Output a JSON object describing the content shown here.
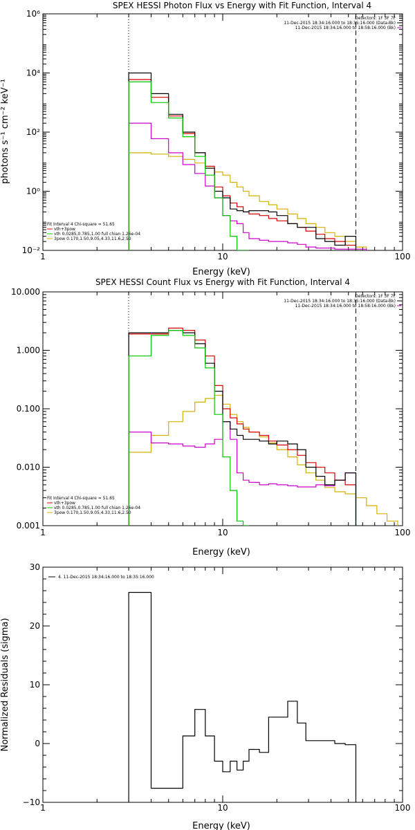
{
  "chart_data": [
    {
      "type": "line",
      "title": "SPEX HESSI Photon Flux vs Energy with Fit Function, Interval 4",
      "xlabel": "Energy (keV)",
      "ylabel": "photons s⁻¹ cm⁻² keV⁻¹",
      "xscale": "log",
      "yscale": "log",
      "xlim": [
        1,
        100
      ],
      "ylim": [
        0.01,
        1000000
      ],
      "x_ticks": [
        1,
        10,
        100
      ],
      "x_tick_labels": [
        "1",
        "10",
        "100"
      ],
      "y_ticks": [
        0.01,
        1,
        100,
        10000,
        1000000
      ],
      "y_tick_labels": [
        "10⁻²",
        "10⁰",
        "10²",
        "10⁴",
        "10⁶"
      ],
      "vlines": [
        {
          "x": 3.0,
          "style": "dotted"
        },
        {
          "x": 55,
          "style": "dashed"
        }
      ],
      "edges": [
        3.0,
        4.0,
        5.0,
        6.0,
        7.0,
        8.0,
        9.0,
        10.0,
        11.0,
        12.0,
        13.0,
        14.0,
        16.0,
        18.0,
        20.0,
        23.0,
        26.0,
        29.0,
        33.0,
        37.0,
        42.0,
        48.0,
        55.0,
        63.0
      ],
      "series": [
        {
          "name": "11-Dec-2015 18:34:16.000 to 18:35:16.000 (Data-Bk)",
          "color": "#000000",
          "values": [
            10000,
            2000,
            400,
            100,
            20,
            6,
            1,
            0.6,
            0.25,
            0.22,
            0.2,
            0.22,
            0.22,
            0.2,
            0.15,
            0.08,
            0.06,
            0.06,
            0.025,
            0.02,
            0.015,
            0.03,
            null
          ]
        },
        {
          "name": "vth+3pow",
          "color": "#d40000",
          "values": [
            6000,
            1500,
            350,
            90,
            20,
            7,
            1.4,
            0.7,
            0.4,
            0.3,
            0.2,
            0.17,
            0.15,
            0.12,
            0.1,
            0.08,
            0.06,
            0.045,
            0.035,
            0.025,
            0.02,
            0.015,
            null
          ]
        },
        {
          "name": "11-Dec-2015 18:34:16.000 to 18:58:16.000 (Bk)",
          "color": "#cc00cc",
          "values": [
            200,
            60,
            20,
            8,
            4,
            1.5,
            0.6,
            0.15,
            0.1,
            0.08,
            0.04,
            0.025,
            0.022,
            0.02,
            0.02,
            0.018,
            0.016,
            0.013,
            0.012,
            0.012,
            0.011,
            0.011,
            0.011
          ]
        },
        {
          "name": "vth 0.0285,0.785,1.00  full chian 1.26e-04",
          "color": "#00c800",
          "values": [
            5000,
            1000,
            300,
            70,
            15,
            3.5,
            0.6,
            0.15,
            0.03,
            0.01,
            0.002,
            null,
            null,
            null,
            null,
            null,
            null,
            null,
            null,
            null,
            null,
            null,
            null
          ]
        },
        {
          "name": "3pow 0.170,1.50,9.05,4.33,11.6,2.50",
          "color": "#d4b000",
          "values": [
            20,
            18,
            15,
            12,
            9,
            6,
            4.5,
            3.5,
            2,
            1.4,
            1,
            0.7,
            0.45,
            0.35,
            0.25,
            0.17,
            0.12,
            0.08,
            0.06,
            0.04,
            0.03,
            0.02,
            0.013
          ]
        }
      ],
      "legend_top_right": [
        "Detectors: 1F 3F 7F",
        "11-Dec-2015 18:34:16.000 to 18:35:16.000 (Data-Bk)",
        "11-Dec-2015 18:34:16.000 to 18:58:16.000 (Bk)"
      ],
      "legend_bottom_left": [
        "Fit Interval  4   Chi-square = 51.65",
        "vth+3pow",
        "vth 0.0285,0.785,1.00  full chian 1.26e-04",
        "3pow 0.170,1.50,9.05,4.33,11.6,2.50"
      ]
    },
    {
      "type": "line",
      "title": "SPEX HESSI Count Flux vs Energy with Fit Function, Interval 4",
      "xlabel": "Energy (keV)",
      "ylabel": "",
      "xscale": "log",
      "yscale": "log",
      "xlim": [
        1,
        100
      ],
      "ylim": [
        0.001,
        10
      ],
      "x_ticks": [
        1,
        10,
        100
      ],
      "x_tick_labels": [
        "1",
        "10",
        "100"
      ],
      "y_ticks": [
        0.001,
        0.01,
        0.1,
        1,
        10
      ],
      "y_tick_labels": [
        "0.001",
        "0.010",
        "0.100",
        "1.000",
        "10.000"
      ],
      "vlines": [
        {
          "x": 3.0,
          "style": "dotted"
        },
        {
          "x": 55,
          "style": "dashed"
        }
      ],
      "edges": [
        3.0,
        4.0,
        5.0,
        6.0,
        7.0,
        8.0,
        9.0,
        10.0,
        11.0,
        12.0,
        13.0,
        14.0,
        16.0,
        18.0,
        20.0,
        23.0,
        26.0,
        29.0,
        33.0,
        37.0,
        42.0,
        48.0,
        55.0,
        63.0,
        72.0,
        82.0,
        94.0
      ],
      "series": [
        {
          "name": "11-Dec-2015 18:34:16.000 to 18:35:16.000 (Data-Bk)",
          "color": "#000000",
          "values": [
            2,
            2,
            2.2,
            2,
            1.3,
            0.6,
            0.2,
            0.06,
            0.045,
            0.035,
            0.03,
            0.03,
            0.028,
            0.025,
            0.028,
            0.025,
            0.02,
            0.01,
            0.007,
            0.005,
            0.006,
            0.008,
            null,
            null,
            null,
            null
          ]
        },
        {
          "name": "vth+3pow",
          "color": "#d40000",
          "values": [
            1.9,
            1.9,
            2.4,
            2.2,
            1.5,
            0.8,
            0.25,
            0.1,
            0.07,
            0.055,
            0.045,
            0.04,
            0.035,
            0.028,
            0.024,
            0.02,
            0.016,
            0.012,
            0.01,
            0.008,
            0.006,
            0.005,
            null,
            null,
            null,
            null
          ]
        },
        {
          "name": "11-Dec-2015 18:34:16.000 to 18:58:16.000 (Bk)",
          "color": "#cc00cc",
          "values": [
            0.04,
            0.026,
            0.025,
            0.023,
            0.022,
            0.025,
            0.03,
            0.06,
            0.03,
            0.008,
            0.006,
            0.0055,
            0.005,
            0.0052,
            0.005,
            0.0048,
            0.0046,
            0.0046,
            0.005,
            0.0048,
            0.006,
            0.008,
            null,
            null,
            null,
            null
          ]
        },
        {
          "name": "vth 0.0285,0.785,1.00  full chian 1.26e-04",
          "color": "#00c800",
          "values": [
            0.8,
            1.8,
            2.2,
            1.8,
            1.1,
            0.5,
            0.08,
            0.015,
            0.004,
            0.0012,
            0.0005,
            null,
            null,
            null,
            null,
            null,
            null,
            null,
            null,
            null,
            null,
            null,
            null,
            null,
            null,
            null
          ]
        },
        {
          "name": "3pow 0.170,1.50,9.05,4.33,11.6,2.50",
          "color": "#d4b000",
          "values": [
            0.018,
            0.035,
            0.06,
            0.09,
            0.13,
            0.15,
            0.17,
            0.12,
            0.08,
            0.06,
            0.048,
            0.04,
            0.033,
            0.026,
            0.02,
            0.015,
            0.011,
            0.008,
            0.006,
            0.0045,
            0.0038,
            0.0035,
            0.003,
            0.0022,
            0.0016,
            0.0012
          ]
        }
      ],
      "legend_top_right": [
        "Detectors: 1F 3F 7F",
        "11-Dec-2015 18:34:16.000 to 18:35:16.000 (Data-Bk)",
        "11-Dec-2015 18:34:16.000 to 18:58:16.000 (Bk)"
      ],
      "legend_bottom_left": [
        "Fit Interval  4   Chi-square = 51.65",
        "vth+3pow",
        "vth 0.0285,0.785,1.00  full chian 1.26e-04",
        "3pow 0.170,1.50,9.05,4.33,11.6,2.50"
      ]
    },
    {
      "type": "line",
      "title": "",
      "xlabel": "Energy (keV)",
      "ylabel": "Normalized Residuals (sigma)",
      "xscale": "log",
      "yscale": "linear",
      "xlim": [
        1,
        100
      ],
      "ylim": [
        -10,
        30
      ],
      "x_ticks": [
        1,
        10,
        100
      ],
      "x_tick_labels": [
        "1",
        "10",
        "100"
      ],
      "y_ticks": [
        -10,
        0,
        10,
        20,
        30
      ],
      "y_tick_labels": [
        "−10",
        "0",
        "10",
        "20",
        "30"
      ],
      "edges": [
        3.0,
        4.0,
        5.0,
        6.0,
        7.0,
        8.0,
        9.0,
        10.0,
        11.0,
        12.0,
        13.0,
        14.0,
        16.0,
        18.0,
        20.0,
        23.0,
        26.0,
        29.0,
        33.0,
        37.0,
        42.0,
        48.0,
        55.0
      ],
      "series": [
        {
          "name": "4. 11-Dec-2015 18:34:16.000 to 18:35:16.000",
          "color": "#000000",
          "values": [
            25.7,
            -7.6,
            -7.6,
            1.3,
            5.8,
            1.3,
            -3,
            -4.8,
            -3,
            -4.5,
            -3,
            -1,
            -1.5,
            4.5,
            4.5,
            7.2,
            3.5,
            0.5,
            0.5,
            0.5,
            0,
            -0.2
          ]
        }
      ],
      "legend_top_left": [
        "4. 11-Dec-2015 18:34:16.000 to 18:35:16.000"
      ]
    }
  ]
}
